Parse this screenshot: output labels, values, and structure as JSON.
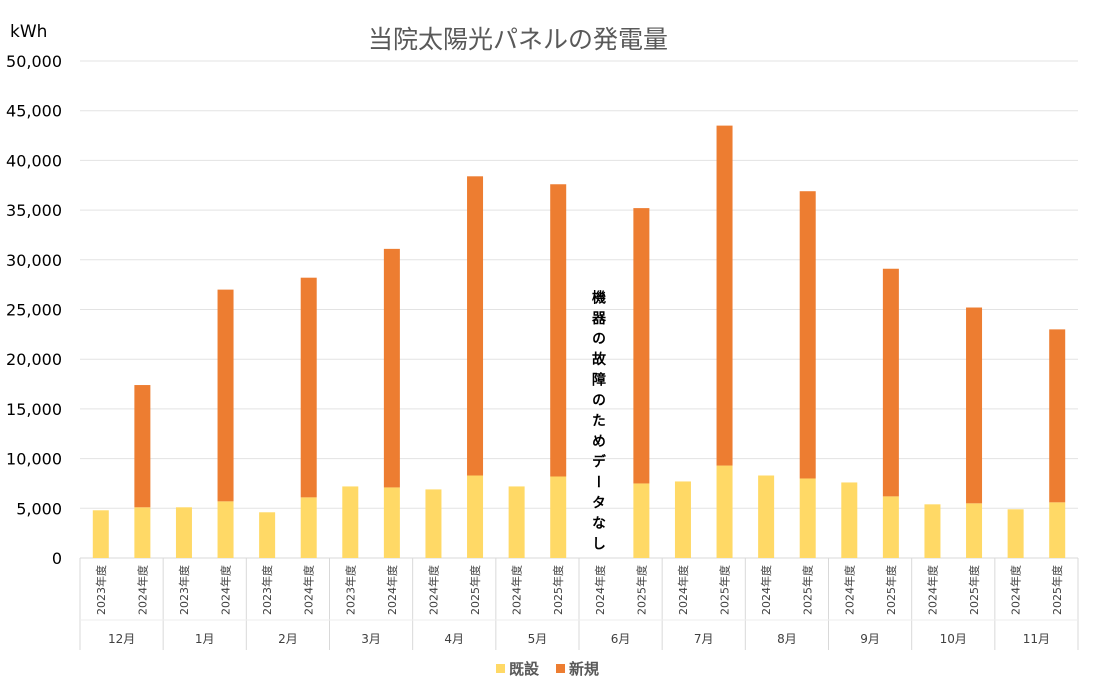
{
  "chart_data": {
    "type": "bar",
    "stacked": true,
    "title": "当院太陽光パネルの発電量",
    "ylabel": "kWh",
    "ylim": [
      0,
      50000
    ],
    "yticks": [
      "0",
      "5,000",
      "10,000",
      "15,000",
      "20,000",
      "25,000",
      "30,000",
      "35,000",
      "40,000",
      "45,000",
      "50,000"
    ],
    "grid": true,
    "legend_position": "bottom",
    "groups": [
      {
        "month": "12月",
        "years": [
          "2023年度",
          "2024年度"
        ]
      },
      {
        "month": "1月",
        "years": [
          "2023年度",
          "2024年度"
        ]
      },
      {
        "month": "2月",
        "years": [
          "2023年度",
          "2024年度"
        ]
      },
      {
        "month": "3月",
        "years": [
          "2023年度",
          "2024年度"
        ]
      },
      {
        "month": "4月",
        "years": [
          "2024年度",
          "2025年度"
        ]
      },
      {
        "month": "5月",
        "years": [
          "2024年度",
          "2025年度"
        ]
      },
      {
        "month": "6月",
        "years": [
          "2024年度",
          "2025年度"
        ]
      },
      {
        "month": "7月",
        "years": [
          "2024年度",
          "2025年度"
        ]
      },
      {
        "month": "8月",
        "years": [
          "2024年度",
          "2025年度"
        ]
      },
      {
        "month": "9月",
        "years": [
          "2024年度",
          "2025年度"
        ]
      },
      {
        "month": "10月",
        "years": [
          "2024年度",
          "2025年度"
        ]
      },
      {
        "month": "11月",
        "years": [
          "2024年度",
          "2025年度"
        ]
      }
    ],
    "series": [
      {
        "name": "既設",
        "color": "#FFD966",
        "values": [
          4800,
          5100,
          5100,
          5700,
          4600,
          6100,
          7200,
          7100,
          6900,
          8300,
          7200,
          8200,
          null,
          7500,
          7700,
          9300,
          8300,
          8000,
          7600,
          6200,
          5400,
          5500,
          4900,
          5600
        ]
      },
      {
        "name": "新規",
        "color": "#ED7D31",
        "values": [
          0,
          12300,
          0,
          21300,
          0,
          22100,
          0,
          24000,
          0,
          30100,
          0,
          29400,
          null,
          27700,
          0,
          34200,
          0,
          28900,
          0,
          22900,
          0,
          19700,
          0,
          17400
        ]
      }
    ],
    "annotations": [
      {
        "text": "機器の故障のためデータなし",
        "at": "6月 2024年度"
      }
    ]
  }
}
